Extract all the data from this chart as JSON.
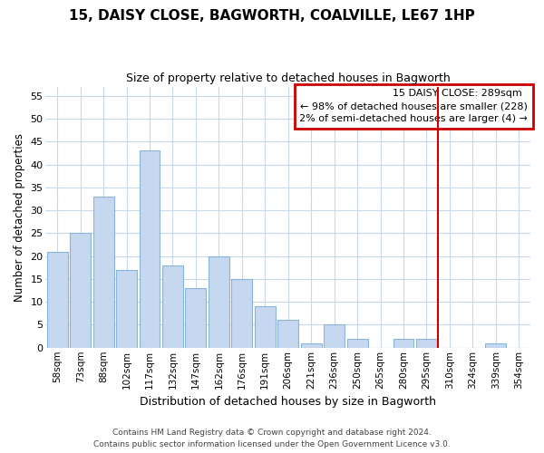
{
  "title": "15, DAISY CLOSE, BAGWORTH, COALVILLE, LE67 1HP",
  "subtitle": "Size of property relative to detached houses in Bagworth",
  "xlabel": "Distribution of detached houses by size in Bagworth",
  "ylabel": "Number of detached properties",
  "bar_labels": [
    "58sqm",
    "73sqm",
    "88sqm",
    "102sqm",
    "117sqm",
    "132sqm",
    "147sqm",
    "162sqm",
    "176sqm",
    "191sqm",
    "206sqm",
    "221sqm",
    "236sqm",
    "250sqm",
    "265sqm",
    "280sqm",
    "295sqm",
    "310sqm",
    "324sqm",
    "339sqm",
    "354sqm"
  ],
  "bar_values": [
    21,
    25,
    33,
    17,
    43,
    18,
    13,
    20,
    15,
    9,
    6,
    1,
    5,
    2,
    0,
    2,
    2,
    0,
    0,
    1,
    0
  ],
  "bar_color": "#c5d8f0",
  "bar_edge_color": "#8ab4d8",
  "vline_x": 16.5,
  "vline_color": "#cc0000",
  "ylim": [
    0,
    57
  ],
  "yticks": [
    0,
    5,
    10,
    15,
    20,
    25,
    30,
    35,
    40,
    45,
    50,
    55
  ],
  "annotation_title": "15 DAISY CLOSE: 289sqm",
  "annotation_line1": "← 98% of detached houses are smaller (228)",
  "annotation_line2": "2% of semi-detached houses are larger (4) →",
  "annotation_box_color": "#cc0000",
  "footer_line1": "Contains HM Land Registry data © Crown copyright and database right 2024.",
  "footer_line2": "Contains public sector information licensed under the Open Government Licence v3.0.",
  "background_color": "#ffffff",
  "grid_color": "#c8d8e8"
}
